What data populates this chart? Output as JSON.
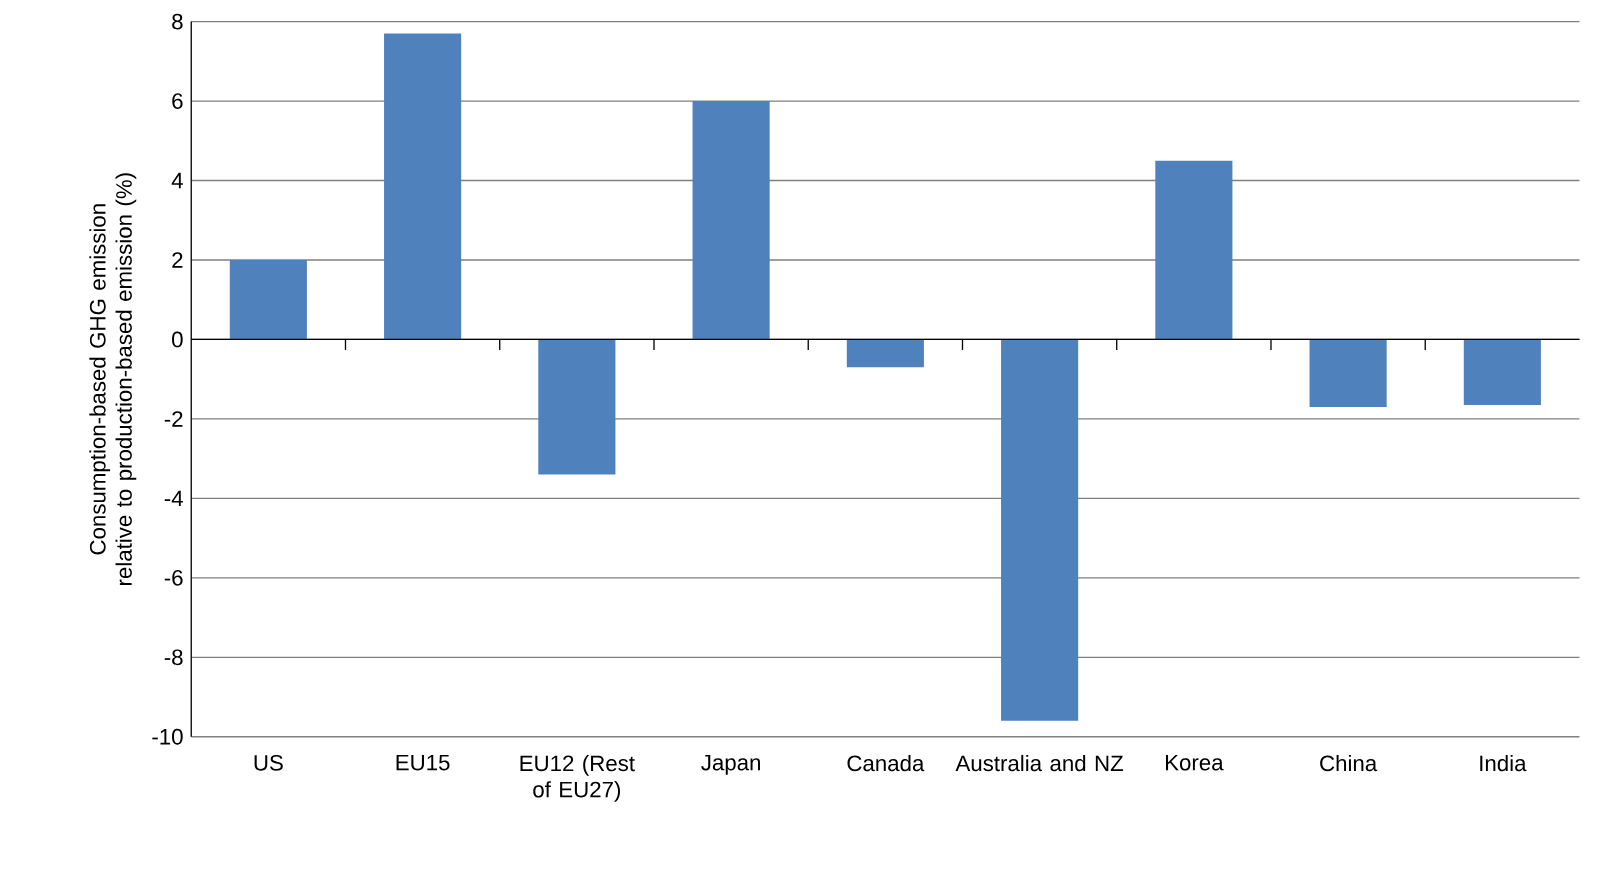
{
  "chart_data": {
    "type": "bar",
    "ylabel": "Consumption-based GHG emission relative to production-based emission (%)",
    "categories": [
      "US",
      "EU15",
      "EU12 (Rest of EU27)",
      "Japan",
      "Canada",
      "Australia and NZ",
      "Korea",
      "China",
      "India"
    ],
    "values": [
      2.0,
      7.7,
      -3.4,
      6.0,
      -0.7,
      -9.6,
      4.5,
      -1.7,
      -1.65
    ],
    "color": "#4f81bd",
    "ylim": [
      -10,
      8
    ],
    "yticks": [
      -10,
      -8,
      -6,
      -4,
      -2,
      0,
      2,
      4,
      6,
      8
    ],
    "grid": "y"
  }
}
